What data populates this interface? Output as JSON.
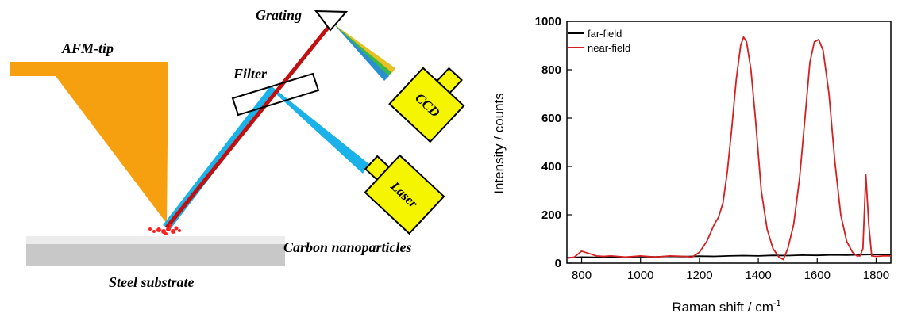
{
  "diagram": {
    "labels": {
      "afm_tip": "AFM-tip",
      "grating": "Grating",
      "filter": "Filter",
      "ccd": "CCD",
      "laser": "Laser",
      "nanoparticles": "Carbon nanoparticles",
      "substrate": "Steel substrate"
    },
    "colors": {
      "tip": "#f7a00f",
      "laser_beam": "#1ab2e8",
      "raman_beam": "#c01010",
      "device": "#f5f500",
      "substrate": "#c8c8c8",
      "nanoparticles": "#ff2020"
    }
  },
  "chart_data": {
    "type": "line",
    "title": "",
    "xlabel": "Raman shift / cm",
    "xlabel_superscript": "-1",
    "ylabel": "Intensity / counts",
    "xlim": [
      750,
      1850
    ],
    "ylim": [
      0,
      1000
    ],
    "xticks": [
      800,
      1000,
      1200,
      1400,
      1600,
      1800
    ],
    "yticks": [
      0,
      200,
      400,
      600,
      800,
      1000
    ],
    "grid": false,
    "legend_position": "top-left",
    "series": [
      {
        "name": "far-field",
        "color": "#000000",
        "x": [
          750,
          800,
          850,
          900,
          950,
          1000,
          1050,
          1100,
          1150,
          1200,
          1250,
          1300,
          1350,
          1400,
          1450,
          1500,
          1550,
          1600,
          1650,
          1700,
          1750,
          1800,
          1850
        ],
        "y": [
          22,
          25,
          24,
          26,
          25,
          27,
          26,
          28,
          27,
          29,
          28,
          30,
          31,
          30,
          32,
          31,
          33,
          32,
          34,
          33,
          35,
          36,
          35
        ]
      },
      {
        "name": "near-field",
        "color": "#d42020",
        "x": [
          750,
          775,
          800,
          825,
          850,
          875,
          900,
          950,
          1000,
          1050,
          1100,
          1150,
          1175,
          1200,
          1225,
          1250,
          1265,
          1280,
          1295,
          1310,
          1325,
          1340,
          1350,
          1360,
          1375,
          1390,
          1410,
          1430,
          1450,
          1470,
          1485,
          1500,
          1520,
          1540,
          1560,
          1575,
          1590,
          1605,
          1620,
          1640,
          1660,
          1680,
          1700,
          1720,
          1735,
          1745,
          1755,
          1765,
          1775,
          1785,
          1800,
          1825,
          1850
        ],
        "y": [
          20,
          25,
          50,
          40,
          30,
          28,
          30,
          25,
          30,
          25,
          30,
          28,
          25,
          45,
          90,
          160,
          190,
          250,
          380,
          560,
          760,
          900,
          935,
          915,
          800,
          600,
          300,
          140,
          60,
          25,
          15,
          60,
          160,
          350,
          620,
          830,
          915,
          925,
          880,
          700,
          420,
          200,
          90,
          45,
          30,
          30,
          60,
          365,
          160,
          30,
          28,
          30,
          30
        ]
      }
    ]
  }
}
